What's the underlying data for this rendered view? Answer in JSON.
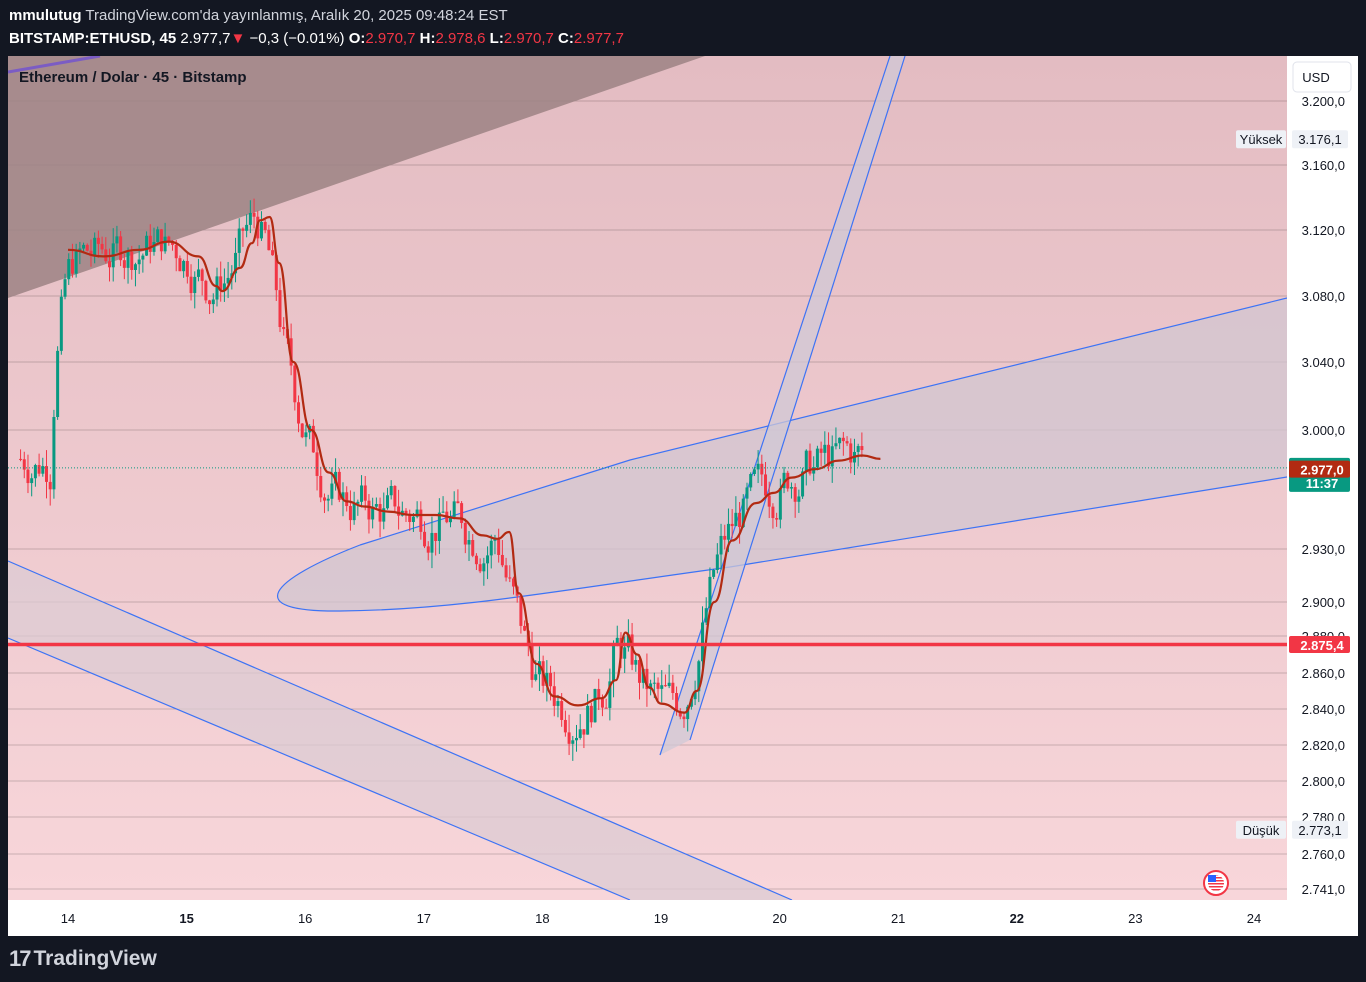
{
  "header": {
    "author": "mmulutug",
    "published": "TradingView.com'da yayınlanmış, Aralık 20, 2025 09:48:24 EST",
    "symbol": "BITSTAMP:ETHUSD, 45",
    "last": "2.977,7",
    "change": "−0,3 (−0.01%)",
    "o_label": "O:",
    "o_value": "2.970,7",
    "h_label": "H:",
    "h_value": "2.978,6",
    "l_label": "L:",
    "l_value": "2.970,7",
    "c_label": "C:",
    "c_value": "2.977,7"
  },
  "footer": {
    "brand": "TradingView"
  },
  "colors": {
    "up": "#089981",
    "down": "#f23645",
    "ma": "#b22a12",
    "drawing": "#3d73f5",
    "bg_top": "#e3bcc2",
    "bg_bottom": "#f8d6da",
    "wedge": "#9e8485"
  },
  "chart_data": {
    "type": "candlestick",
    "title": "Ethereum / Dolar · 45 · Bitstamp",
    "currency_button": "USD",
    "y_ticks": [
      "3.200,0",
      "3.160,0",
      "3.120,0",
      "3.080,0",
      "3.040,0",
      "3.000,0",
      "2.930,0",
      "2.900,0",
      "2.880,0",
      "2.860,0",
      "2.840,0",
      "2.820,0",
      "2.800,0",
      "2.780,0",
      "2.760,0",
      "2.741,0"
    ],
    "x_ticks": [
      "14",
      "15",
      "16",
      "17",
      "18",
      "19",
      "20",
      "21",
      "22",
      "23",
      "24"
    ],
    "bold_x_ticks": [
      "15",
      "22"
    ],
    "high_label": "Yüksek",
    "high_value": "3.176,1",
    "low_label": "Düşük",
    "low_value": "2.773,1",
    "last_price": "2.977,7",
    "countdown": "11:37",
    "prev_close": "2.977,0",
    "horizontal_level": "2.875,4",
    "ma_path": [
      [
        14.0,
        3108
      ],
      [
        14.3,
        3104
      ],
      [
        14.6,
        3108
      ],
      [
        14.85,
        3113
      ],
      [
        15.1,
        3104
      ],
      [
        15.25,
        3086
      ],
      [
        15.3,
        3083
      ],
      [
        15.45,
        3097
      ],
      [
        15.55,
        3112
      ],
      [
        15.62,
        3126
      ],
      [
        15.7,
        3128
      ],
      [
        15.78,
        3100
      ],
      [
        15.9,
        3040
      ],
      [
        16.05,
        3000
      ],
      [
        16.2,
        2975
      ],
      [
        16.35,
        2958
      ],
      [
        16.5,
        2955
      ],
      [
        16.7,
        2952
      ],
      [
        16.9,
        2950
      ],
      [
        17.1,
        2950
      ],
      [
        17.3,
        2948
      ],
      [
        17.5,
        2938
      ],
      [
        17.62,
        2936
      ],
      [
        17.72,
        2940
      ],
      [
        17.8,
        2905
      ],
      [
        17.95,
        2865
      ],
      [
        18.1,
        2847
      ],
      [
        18.3,
        2842
      ],
      [
        18.5,
        2846
      ],
      [
        18.62,
        2856
      ],
      [
        18.7,
        2882
      ],
      [
        18.8,
        2870
      ],
      [
        18.9,
        2852
      ],
      [
        19.0,
        2843
      ],
      [
        19.2,
        2838
      ],
      [
        19.3,
        2850
      ],
      [
        19.45,
        2900
      ],
      [
        19.6,
        2935
      ],
      [
        19.8,
        2957
      ],
      [
        19.95,
        2963
      ],
      [
        20.1,
        2972
      ],
      [
        20.3,
        2977
      ],
      [
        20.5,
        2982
      ],
      [
        20.7,
        2985
      ],
      [
        20.85,
        2983
      ]
    ]
  }
}
